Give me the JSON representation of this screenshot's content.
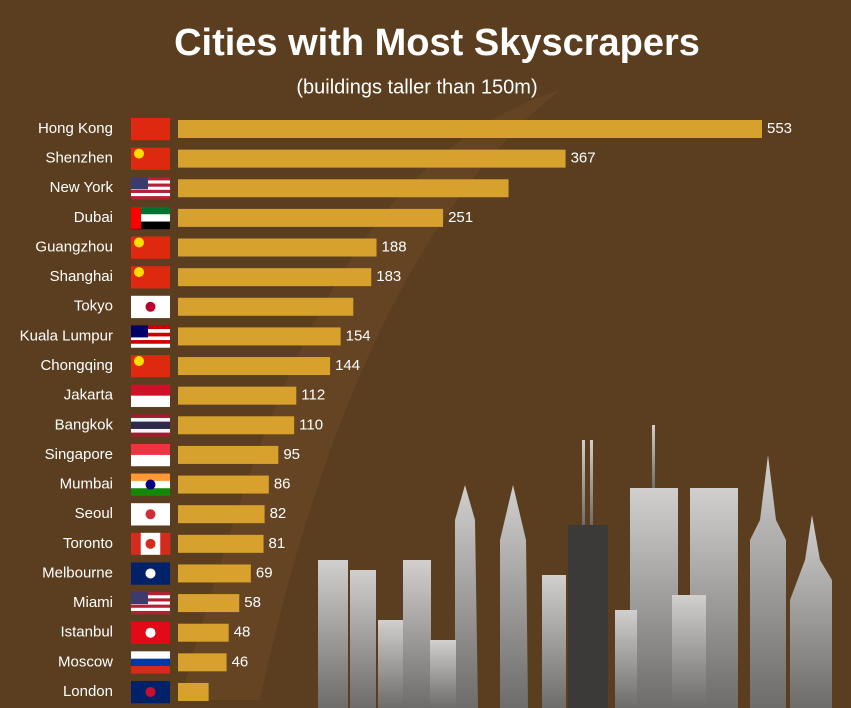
{
  "chart_data": {
    "type": "bar",
    "orientation": "horizontal",
    "title": "Cities with Most Skyscrapers",
    "subtitle": "(buildings taller than 150m)",
    "categories": [
      "Hong Kong",
      "Shenzhen",
      "New York",
      "Dubai",
      "Guangzhou",
      "Shanghai",
      "Tokyo",
      "Kuala Lumpur",
      "Chongqing",
      "Jakarta",
      "Bangkok",
      "Singapore",
      "Mumbai",
      "Seoul",
      "Toronto",
      "Melbourne",
      "Miami",
      "Istanbul",
      "Moscow",
      "London"
    ],
    "values": [
      553,
      367,
      313,
      251,
      188,
      183,
      166,
      154,
      144,
      112,
      110,
      95,
      86,
      82,
      81,
      69,
      58,
      48,
      46,
      29
    ],
    "value_labels": [
      "553",
      "367",
      null,
      "251",
      "188",
      "183",
      null,
      "154",
      "144",
      "112",
      "110",
      "95",
      "86",
      "82",
      "81",
      "69",
      "58",
      "48",
      "46",
      null
    ],
    "color": "#e2a92f"
  }
}
